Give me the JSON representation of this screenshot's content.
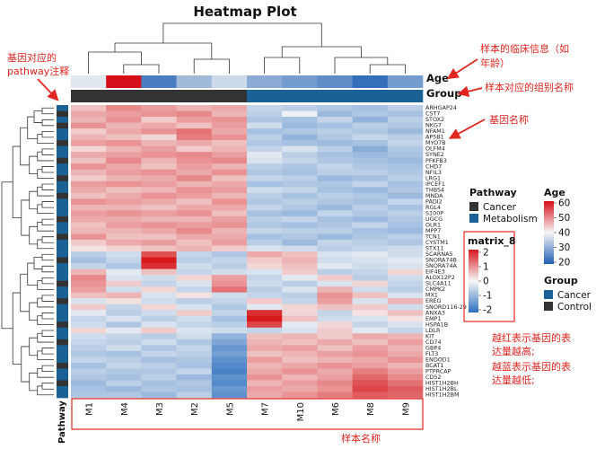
{
  "chart_data": {
    "type": "heatmap",
    "title": "Heatmap Plot",
    "samples": [
      "M1",
      "M4",
      "M3",
      "M2",
      "M5",
      "M7",
      "M10",
      "M6",
      "M8",
      "M9"
    ],
    "genes": [
      "ARHGAP24",
      "CST7",
      "STOX2",
      "NKG7",
      "NFAM1",
      "AP5B1",
      "MYO7B",
      "OLFM4",
      "SYNE2",
      "PFKFB3",
      "CHD7",
      "NFIL3",
      "LRG1",
      "IPCEF1",
      "THBS4",
      "MNDA",
      "PADI2",
      "RGL4",
      "S100P",
      "UGCG",
      "OLR1",
      "MPP7",
      "TCN1",
      "CYSTM1",
      "STX11",
      "SCARNA5",
      "SNORA74B",
      "SNORA74A",
      "EIF4E3",
      "ALOX12P2",
      "SLC4A11",
      "CMPK2",
      "MX1",
      "EREG",
      "SNORD116-29",
      "ANXA3",
      "EMP1",
      "HSPA1B",
      "LDLR",
      "KIT",
      "CD74",
      "GBP4",
      "FLT3",
      "ENDOD1",
      "BCAT1",
      "PTPRCAP",
      "CD52",
      "HIST1H2BH",
      "HIST1H2BL",
      "HIST1H2BM"
    ],
    "row_labels_shown": [
      "ARHGAP24",
      "CST7",
      "STOX2",
      "NKG7",
      "NFAM1",
      "AP5B1",
      "MYO7B",
      "OLFM4",
      "SYNE2",
      "PFKFB3",
      "CHD7",
      "NFIL3",
      "LRG1",
      "IPCEF1",
      "THBS4",
      "MNDA",
      "PADI2",
      "RGL4",
      "S100P",
      "UGCG",
      "OLR1",
      "MPP7",
      "TCN1",
      "CYSTM1",
      "STX11",
      "SCARNA5",
      "SNORA74B",
      "SNORA74A",
      "EIF4E3",
      "ALOX12P2",
      "SLC4A11",
      "CMPK2",
      "MX1",
      "EREG",
      "SNORD116-29",
      "ANXA3",
      "EMP1",
      "HSPA1B",
      "LDLR",
      "KIT",
      "CD74",
      "GBP4",
      "FLT3",
      "ENDOD1",
      "BCAT1",
      "PTPRCAP",
      "CD52",
      "HIST1H2BH",
      "HIST1H2BL",
      "HIST1H2BM"
    ],
    "values": [
      [
        0.5,
        1.0,
        0.8,
        0.6,
        0.7,
        -0.5,
        -0.6,
        -0.7,
        -0.8,
        -0.6
      ],
      [
        0.7,
        0.8,
        0.9,
        1.0,
        0.6,
        -0.6,
        -0.1,
        -0.9,
        -0.7,
        -0.8
      ],
      [
        0.6,
        0.9,
        0.4,
        0.8,
        0.9,
        -0.7,
        -0.8,
        -0.5,
        -1.0,
        -0.6
      ],
      [
        0.9,
        0.6,
        0.7,
        0.5,
        0.8,
        -0.4,
        -0.9,
        -0.8,
        -0.6,
        -0.7
      ],
      [
        0.4,
        0.7,
        0.9,
        1.2,
        0.7,
        -0.8,
        -0.7,
        -0.6,
        -0.7,
        -0.9
      ],
      [
        0.6,
        0.5,
        0.3,
        1.1,
        0.9,
        -0.6,
        -1.0,
        -0.7,
        -0.5,
        -0.6
      ],
      [
        0.8,
        0.9,
        0.6,
        0.7,
        0.5,
        -0.7,
        -0.8,
        -0.9,
        -0.8,
        -0.5
      ],
      [
        0.3,
        0.6,
        0.8,
        0.4,
        0.6,
        -0.5,
        -0.3,
        -0.6,
        -1.1,
        -0.7
      ],
      [
        0.7,
        0.8,
        0.9,
        1.0,
        0.8,
        -0.2,
        -0.6,
        -0.8,
        -0.9,
        -0.8
      ],
      [
        0.5,
        1.0,
        0.6,
        0.9,
        1.0,
        -0.3,
        -0.5,
        -0.7,
        -0.8,
        -0.9
      ],
      [
        0.9,
        0.7,
        0.5,
        0.8,
        0.6,
        -0.6,
        -0.7,
        -0.5,
        -0.7,
        -0.8
      ],
      [
        0.6,
        0.8,
        0.9,
        0.7,
        0.9,
        -0.7,
        -0.8,
        -0.6,
        -0.6,
        -0.7
      ],
      [
        0.4,
        0.6,
        0.7,
        1.0,
        0.5,
        -0.5,
        -0.6,
        -0.9,
        -0.8,
        -0.6
      ],
      [
        0.8,
        0.9,
        0.8,
        0.6,
        0.7,
        -0.8,
        -0.7,
        -0.7,
        -0.5,
        -0.8
      ],
      [
        0.7,
        0.5,
        0.6,
        0.9,
        0.8,
        -0.4,
        -0.5,
        -0.8,
        -0.9,
        -0.7
      ],
      [
        0.5,
        0.7,
        0.9,
        0.8,
        0.6,
        -0.6,
        -0.8,
        -0.6,
        -0.7,
        -0.9
      ],
      [
        0.9,
        0.8,
        0.7,
        0.5,
        0.9,
        -0.7,
        -0.6,
        -0.7,
        -0.8,
        -0.5
      ],
      [
        0.6,
        0.6,
        0.5,
        0.7,
        0.7,
        -0.5,
        -0.7,
        -0.9,
        -0.6,
        -0.8
      ],
      [
        0.8,
        0.9,
        0.8,
        0.9,
        0.5,
        -0.8,
        -0.9,
        -0.5,
        -0.7,
        -0.6
      ],
      [
        0.7,
        0.7,
        0.6,
        0.6,
        0.8,
        -0.6,
        -0.5,
        -0.8,
        -0.9,
        -0.7
      ],
      [
        0.5,
        0.8,
        0.9,
        0.8,
        0.9,
        -0.7,
        -0.8,
        -0.7,
        -0.5,
        -0.8
      ],
      [
        0.6,
        0.6,
        0.7,
        1.0,
        0.6,
        -0.5,
        -0.6,
        -0.6,
        -0.8,
        -0.9
      ],
      [
        0.9,
        0.5,
        0.5,
        0.7,
        0.7,
        -0.8,
        -0.7,
        -0.9,
        -0.7,
        -0.6
      ],
      [
        0.4,
        0.7,
        0.8,
        0.5,
        0.8,
        -0.6,
        -0.9,
        -0.5,
        -0.6,
        -0.7
      ],
      [
        0.2,
        0.3,
        0.5,
        0.6,
        0.4,
        -0.3,
        -0.4,
        -0.6,
        -0.5,
        -0.4
      ],
      [
        -0.6,
        -0.4,
        1.5,
        -0.5,
        -0.7,
        0.7,
        0.5,
        -0.3,
        -0.2,
        -0.4
      ],
      [
        -0.8,
        -0.5,
        2.0,
        -0.6,
        -0.5,
        0.4,
        0.6,
        -0.4,
        -0.3,
        -0.2
      ],
      [
        -0.5,
        -0.7,
        1.8,
        -0.4,
        -0.6,
        0.3,
        0.5,
        -0.2,
        -0.4,
        -0.3
      ],
      [
        0.6,
        -0.2,
        0.5,
        -0.5,
        -0.4,
        -0.3,
        0.4,
        -0.6,
        -0.5,
        0.3
      ],
      [
        1.0,
        -0.3,
        -0.4,
        0.3,
        0.8,
        -0.5,
        -0.2,
        0.4,
        -0.6,
        -0.4
      ],
      [
        0.9,
        0.4,
        -0.5,
        -0.3,
        0.9,
        -0.4,
        -0.6,
        -0.3,
        0.3,
        -0.5
      ],
      [
        0.8,
        -0.4,
        0.3,
        -0.5,
        1.2,
        -0.6,
        -0.3,
        0.6,
        -0.4,
        -0.6
      ],
      [
        0.5,
        0.6,
        -0.3,
        0.2,
        -0.4,
        -0.5,
        -0.6,
        0.9,
        0.5,
        -0.3
      ],
      [
        -0.3,
        0.2,
        -0.4,
        -0.6,
        -0.5,
        0.4,
        -0.5,
        0.8,
        -0.3,
        0.6
      ],
      [
        0.4,
        -0.5,
        0.3,
        -0.3,
        -0.7,
        -0.2,
        0.3,
        0.5,
        0.4,
        -0.4
      ],
      [
        -0.2,
        -0.6,
        -0.4,
        0.4,
        -0.5,
        1.8,
        0.3,
        -0.5,
        0.2,
        0.5
      ],
      [
        -0.5,
        -0.3,
        -0.6,
        -0.4,
        -0.8,
        2.2,
        0.5,
        -0.4,
        -0.3,
        0.2
      ],
      [
        -0.4,
        -0.7,
        -0.3,
        -0.5,
        -0.6,
        1.6,
        -0.2,
        0.3,
        -0.5,
        -0.3
      ],
      [
        0.3,
        -0.2,
        0.4,
        -0.3,
        -0.4,
        -0.5,
        -0.3,
        0.4,
        -0.2,
        -0.5
      ],
      [
        -0.4,
        -0.5,
        -0.6,
        -0.4,
        -1.0,
        0.5,
        0.6,
        0.4,
        0.7,
        0.6
      ],
      [
        -0.5,
        -0.6,
        -0.4,
        -0.7,
        -1.2,
        0.6,
        0.5,
        0.7,
        0.5,
        0.8
      ],
      [
        -0.6,
        -0.4,
        -0.7,
        -0.5,
        -1.4,
        0.7,
        0.8,
        0.5,
        0.8,
        0.6
      ],
      [
        -0.7,
        -0.8,
        -0.5,
        -0.6,
        -1.3,
        0.5,
        0.6,
        0.8,
        0.9,
        0.7
      ],
      [
        -0.5,
        -0.6,
        -0.8,
        -0.7,
        -1.5,
        0.8,
        0.5,
        0.6,
        0.7,
        0.9
      ],
      [
        -0.8,
        -0.5,
        -0.6,
        -0.8,
        -1.6,
        0.6,
        0.7,
        0.9,
        0.8,
        0.6
      ],
      [
        -0.6,
        -0.7,
        -0.7,
        -0.5,
        -1.7,
        0.7,
        0.9,
        0.7,
        1.1,
        0.8
      ],
      [
        -0.7,
        -0.8,
        -0.6,
        -0.9,
        -1.5,
        0.9,
        0.6,
        0.8,
        1.3,
        1.0
      ],
      [
        -0.9,
        -0.6,
        -0.8,
        -0.7,
        -1.6,
        0.6,
        0.8,
        1.0,
        1.5,
        1.2
      ],
      [
        -0.8,
        -0.9,
        -0.7,
        -0.8,
        -1.4,
        0.8,
        0.7,
        0.9,
        1.6,
        1.4
      ],
      [
        -0.7,
        -0.7,
        -0.9,
        -0.6,
        -1.5,
        0.7,
        0.9,
        1.1,
        1.4,
        1.3
      ]
    ],
    "annotations": {
      "age": [
        38,
        60,
        24,
        32,
        36,
        30,
        28,
        26,
        22,
        28
      ],
      "group": [
        "Control",
        "Control",
        "Control",
        "Control",
        "Control",
        "Cancer",
        "Cancer",
        "Cancer",
        "Cancer",
        "Cancer"
      ]
    },
    "pathway": [
      "Metabolism",
      "Cancer",
      "Metabolism",
      "Cancer",
      "Metabolism",
      "Metabolism",
      "Cancer",
      "Metabolism",
      "Metabolism",
      "Cancer",
      "Metabolism",
      "Metabolism",
      "Cancer",
      "Metabolism",
      "Metabolism",
      "Cancer",
      "Metabolism",
      "Metabolism",
      "Metabolism",
      "Cancer",
      "Metabolism",
      "Metabolism",
      "Cancer",
      "Metabolism",
      "Metabolism",
      "Metabolism",
      "Cancer",
      "Metabolism",
      "Metabolism",
      "Metabolism",
      "Cancer",
      "Metabolism",
      "Metabolism",
      "Cancer",
      "Metabolism",
      "Metabolism",
      "Metabolism",
      "Cancer",
      "Metabolism",
      "Metabolism",
      "Cancer",
      "Metabolism",
      "Metabolism",
      "Metabolism",
      "Cancer",
      "Metabolism",
      "Metabolism",
      "Cancer",
      "Metabolism",
      "Metabolism"
    ],
    "annotation_labels": {
      "age": "Age",
      "group": "Group",
      "pathway": "Pathway"
    },
    "color_scale": {
      "name": "matrix_8",
      "min": -2,
      "max": 2,
      "ticks": [
        2,
        1,
        0,
        -1,
        -2
      ],
      "low": "#2c6fbf",
      "mid": "#f7f7f7",
      "high": "#d7191c"
    },
    "age_scale": {
      "min": 20,
      "max": 60,
      "ticks": [
        60,
        50,
        40,
        30,
        20
      ],
      "low": "#1f5fb4",
      "mid": "#f7f7f7",
      "high": "#d40f1a"
    },
    "legend": {
      "pathway": {
        "title": "Pathway",
        "items": [
          {
            "label": "Cancer",
            "color": "#333333"
          },
          {
            "label": "Metabolism",
            "color": "#1a6196"
          }
        ]
      },
      "group": {
        "title": "Group",
        "items": [
          {
            "label": "Cancer",
            "color": "#1a6196"
          },
          {
            "label": "Control",
            "color": "#333333"
          }
        ]
      }
    }
  },
  "annotations_text": {
    "gene_pathway": [
      "基因对应的",
      "pathway注释"
    ],
    "clinical": [
      "样本的临床信息（如",
      "年龄）"
    ],
    "group": "样本对应的组别名称",
    "gene_name": "基因名称",
    "meaning": [
      "越红表示基因的表",
      "达量越高;",
      "越蓝表示基因的表",
      "达量越低;"
    ],
    "sample_name": "样本名称"
  }
}
